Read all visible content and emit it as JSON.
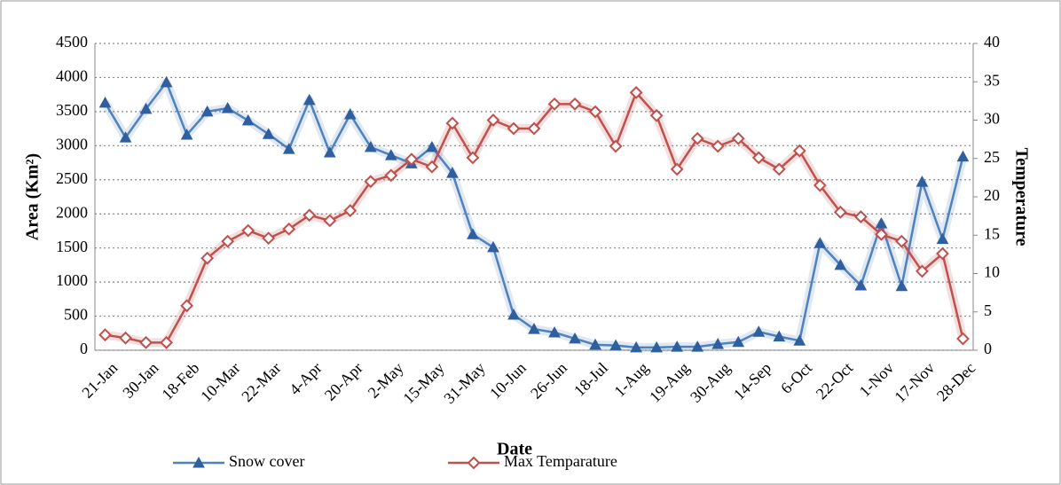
{
  "chart_data": {
    "type": "line",
    "x_label": "Date",
    "y_label": "Area  (Km²)",
    "y2_label": "Temperature",
    "categories": [
      "21-Jan",
      null,
      "30-Jan",
      null,
      "18-Feb",
      null,
      "10-Mar",
      null,
      "22-Mar",
      null,
      "4-Apr",
      null,
      "20-Apr",
      null,
      "2-May",
      null,
      "15-May",
      null,
      "31-May",
      null,
      "10-Jun",
      null,
      "26-Jun",
      null,
      "18-Jul",
      null,
      "1-Aug",
      null,
      "19-Aug",
      null,
      "30-Aug",
      null,
      "14-Sep",
      null,
      "6-Oct",
      null,
      "22-Oct",
      null,
      "1-Nov",
      null,
      "17-Nov",
      null,
      "28-Dec"
    ],
    "series": [
      {
        "name": "Snow cover",
        "color": "#4f81bd",
        "marker_color": "#2f5f9f",
        "axis": "y",
        "values": [
          3630,
          3120,
          3540,
          3930,
          3160,
          3500,
          3550,
          3370,
          3170,
          2950,
          3670,
          2900,
          3460,
          2980,
          2860,
          2740,
          2980,
          2600,
          1700,
          1510,
          520,
          310,
          260,
          170,
          80,
          70,
          40,
          40,
          50,
          50,
          90,
          120,
          270,
          200,
          140,
          1570,
          1250,
          950,
          1860,
          940,
          2470,
          1630,
          2840
        ]
      },
      {
        "name": "Max Temparature",
        "color": "#c0504d",
        "marker_color": "#ffffff",
        "axis": "y2",
        "values": [
          2.0,
          1.6,
          1.0,
          1.0,
          5.8,
          12.0,
          14.2,
          15.6,
          14.6,
          15.8,
          17.6,
          16.9,
          18.2,
          22.0,
          22.8,
          24.9,
          23.9,
          29.6,
          25.1,
          30.0,
          28.9,
          28.9,
          32.1,
          32.1,
          31.1,
          26.6,
          33.6,
          30.6,
          23.6,
          27.6,
          26.6,
          27.6,
          25.1,
          23.6,
          26.0,
          21.5,
          18.0,
          17.4,
          15.1,
          14.2,
          10.3,
          12.6,
          1.5
        ]
      }
    ],
    "ylim": [
      0,
      4500
    ],
    "yticks": [
      0,
      500,
      1000,
      1500,
      2000,
      2500,
      3000,
      3500,
      4000,
      4500
    ],
    "y2lim": [
      0,
      40
    ],
    "y2ticks": [
      0,
      5,
      10,
      15,
      20,
      25,
      30,
      35,
      40
    ],
    "grid": true,
    "legend": "bottom"
  }
}
